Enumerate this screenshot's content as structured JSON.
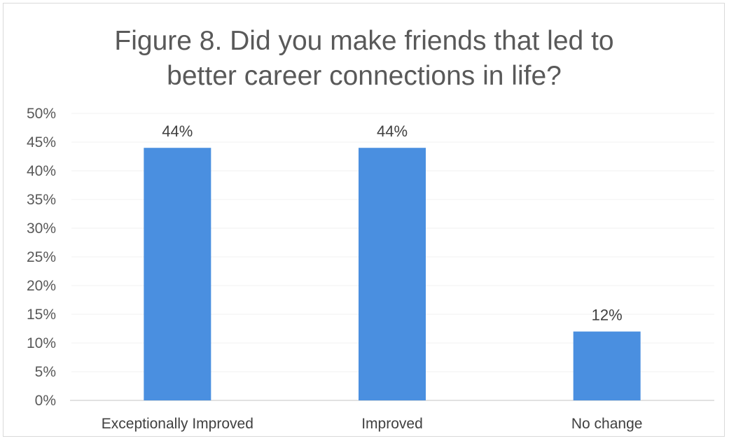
{
  "chart_data": {
    "type": "bar",
    "title_lines": [
      "Figure 8. Did you make friends that led to",
      "better career connections in life?"
    ],
    "categories": [
      "Exceptionally Improved",
      "Improved",
      "No change"
    ],
    "values": [
      44,
      44,
      12
    ],
    "data_labels": [
      "44%",
      "44%",
      "12%"
    ],
    "ylim": [
      0,
      50
    ],
    "yticks": [
      0,
      5,
      10,
      15,
      20,
      25,
      30,
      35,
      40,
      45,
      50
    ],
    "ytick_labels": [
      "0%",
      "5%",
      "10%",
      "15%",
      "20%",
      "25%",
      "30%",
      "35%",
      "40%",
      "45%",
      "50%"
    ],
    "xlabel": "",
    "ylabel": "",
    "grid": true,
    "legend": "none",
    "colors": {
      "bar": "#4a8fe0",
      "gridline": "#f0f0f0",
      "axis": "#d9d9d9",
      "text": "#595959"
    }
  }
}
